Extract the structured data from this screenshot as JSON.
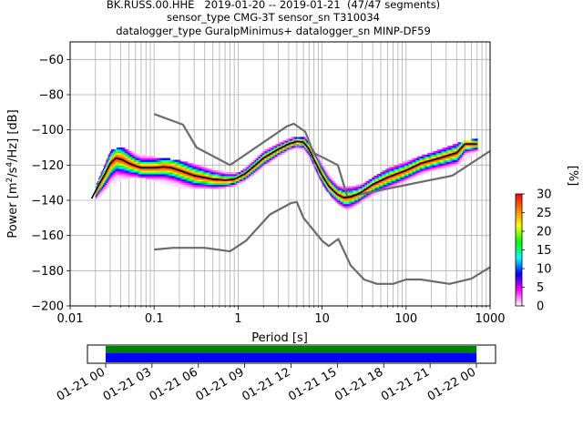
{
  "header": {
    "line1": "BK.RUSS.00.HHE   2019-01-20 -- 2019-01-21  (47/47 segments)",
    "line2": "sensor_type CMG-3T sensor_sn T310034",
    "line3": "datalogger_type GuralpMinimus+ datalogger_sn MINP-DF59"
  },
  "chart_data": [
    {
      "type": "heatmap",
      "subtype": "probabilistic-power-spectral-density",
      "title": "BK.RUSS.00.HHE   2019-01-20 -- 2019-01-21  (47/47 segments)",
      "xlabel": "Period [s]",
      "ylabel": "Power [m²/s⁴/Hz] [dB]",
      "x_scale": "log",
      "xlim": [
        0.01,
        1000
      ],
      "ylim": [
        -200,
        -50
      ],
      "x_ticks": [
        0.01,
        0.1,
        1,
        10,
        100,
        1000
      ],
      "x_tick_labels": [
        "0.01",
        "0.1",
        "1",
        "10",
        "100",
        "1000"
      ],
      "y_ticks": [
        -200,
        -180,
        -160,
        -140,
        -120,
        -100,
        -80,
        -60
      ],
      "y_tick_labels": [
        "−200",
        "−180",
        "−160",
        "−140",
        "−120",
        "−100",
        "−80",
        "−60"
      ],
      "grid": true,
      "colorbar": {
        "label": "[%]",
        "range": [
          0,
          30
        ],
        "ticks": [
          0,
          5,
          10,
          15,
          20,
          25,
          30
        ],
        "tick_labels": [
          "0",
          "5",
          "10",
          "15",
          "20",
          "25",
          "30"
        ],
        "colors": [
          "#ffffff",
          "#ff00ff",
          "#0000ff",
          "#00ffff",
          "#00ff00",
          "#ffff00",
          "#ff8000",
          "#ff0000"
        ]
      },
      "series": [
        {
          "name": "",
          "role": "noise-model-high",
          "color": "#6b6b6b",
          "points": [
            [
              0.1,
              -91
            ],
            [
              0.22,
              -97
            ],
            [
              0.32,
              -110
            ],
            [
              0.8,
              -120
            ],
            [
              3.8,
              -98
            ],
            [
              4.6,
              -96.5
            ],
            [
              6.3,
              -101
            ],
            [
              7.9,
              -113
            ],
            [
              15.4,
              -120
            ],
            [
              20,
              -138
            ],
            [
              354.8,
              -126
            ],
            [
              1000,
              -112
            ]
          ]
        },
        {
          "name": "",
          "role": "noise-model-low",
          "color": "#6b6b6b",
          "points": [
            [
              0.1,
              -168
            ],
            [
              0.17,
              -167
            ],
            [
              0.4,
              -167
            ],
            [
              0.8,
              -169
            ],
            [
              1.24,
              -163
            ],
            [
              2.4,
              -148
            ],
            [
              4.3,
              -141.5
            ],
            [
              5,
              -141
            ],
            [
              6,
              -150
            ],
            [
              10,
              -163
            ],
            [
              12,
              -166
            ],
            [
              15.6,
              -162
            ],
            [
              21.9,
              -177
            ],
            [
              31.6,
              -185
            ],
            [
              45,
              -187.5
            ],
            [
              70,
              -187.5
            ],
            [
              100,
              -185
            ],
            [
              150,
              -185
            ],
            [
              328.9,
              -187.5
            ],
            [
              600,
              -184.5
            ],
            [
              1000,
              -178
            ]
          ]
        },
        {
          "name": "",
          "role": "mode",
          "color": "#000000",
          "points": [
            [
              0.018,
              -139
            ],
            [
              0.022,
              -131
            ],
            [
              0.026,
              -125
            ],
            [
              0.03,
              -119
            ],
            [
              0.035,
              -116
            ],
            [
              0.042,
              -117
            ],
            [
              0.05,
              -119
            ],
            [
              0.06,
              -120.5
            ],
            [
              0.07,
              -121.5
            ],
            [
              0.08,
              -121.5
            ],
            [
              0.1,
              -121.5
            ],
            [
              0.13,
              -121
            ],
            [
              0.16,
              -121.5
            ],
            [
              0.2,
              -123
            ],
            [
              0.3,
              -126
            ],
            [
              0.5,
              -128
            ],
            [
              0.7,
              -128.5
            ],
            [
              0.9,
              -128
            ],
            [
              1.2,
              -125
            ],
            [
              1.6,
              -120
            ],
            [
              2,
              -116
            ],
            [
              3,
              -111
            ],
            [
              4,
              -108
            ],
            [
              5,
              -106.5
            ],
            [
              6,
              -107
            ],
            [
              7,
              -111
            ],
            [
              8,
              -117
            ],
            [
              10,
              -126
            ],
            [
              12,
              -132
            ],
            [
              15,
              -136.5
            ],
            [
              18,
              -138.5
            ],
            [
              22,
              -138
            ],
            [
              28,
              -136
            ],
            [
              40,
              -131
            ],
            [
              60,
              -127
            ],
            [
              100,
              -123
            ],
            [
              150,
              -119
            ],
            [
              250,
              -116
            ],
            [
              400,
              -113
            ],
            [
              500,
              -108
            ],
            [
              700,
              -108
            ]
          ]
        },
        {
          "name": "",
          "role": "psd-density",
          "samples": [
            {
              "x": 0.02,
              "low": -140,
              "high": -132
            },
            {
              "x": 0.03,
              "low": -130,
              "high": -112
            },
            {
              "x": 0.04,
              "low": -128,
              "high": -110
            },
            {
              "x": 0.06,
              "low": -126,
              "high": -114
            },
            {
              "x": 0.1,
              "low": -128,
              "high": -116
            },
            {
              "x": 0.15,
              "low": -131,
              "high": -117
            },
            {
              "x": 0.2,
              "low": -132,
              "high": -118
            },
            {
              "x": 0.3,
              "low": -133,
              "high": -120
            },
            {
              "x": 0.5,
              "low": -133,
              "high": -123
            },
            {
              "x": 1,
              "low": -131,
              "high": -125
            },
            {
              "x": 2,
              "low": -120,
              "high": -112
            },
            {
              "x": 4,
              "low": -111,
              "high": -105
            },
            {
              "x": 6,
              "low": -111,
              "high": -104
            },
            {
              "x": 10,
              "low": -131,
              "high": -120
            },
            {
              "x": 15,
              "low": -142,
              "high": -132
            },
            {
              "x": 20,
              "low": -145,
              "high": -133
            },
            {
              "x": 30,
              "low": -140,
              "high": -131
            },
            {
              "x": 60,
              "low": -133,
              "high": -122
            },
            {
              "x": 100,
              "low": -128,
              "high": -118
            },
            {
              "x": 200,
              "low": -123,
              "high": -113
            },
            {
              "x": 400,
              "low": -120,
              "high": -108
            },
            {
              "x": 700,
              "low": -112,
              "high": -105
            }
          ]
        }
      ]
    },
    {
      "type": "timeline",
      "subtype": "data-availability",
      "tick_labels": [
        "01-21 00",
        "01-21 03",
        "01-21 06",
        "01-21 09",
        "01-21 12",
        "01-21 15",
        "01-21 18",
        "01-21 21",
        "01-22 00"
      ],
      "coverage": [
        {
          "start": 0,
          "end": 24,
          "color": "#007f00",
          "track": "upper"
        },
        {
          "start": 0,
          "end": 24,
          "color": "#0000ff",
          "track": "lower"
        }
      ]
    }
  ]
}
